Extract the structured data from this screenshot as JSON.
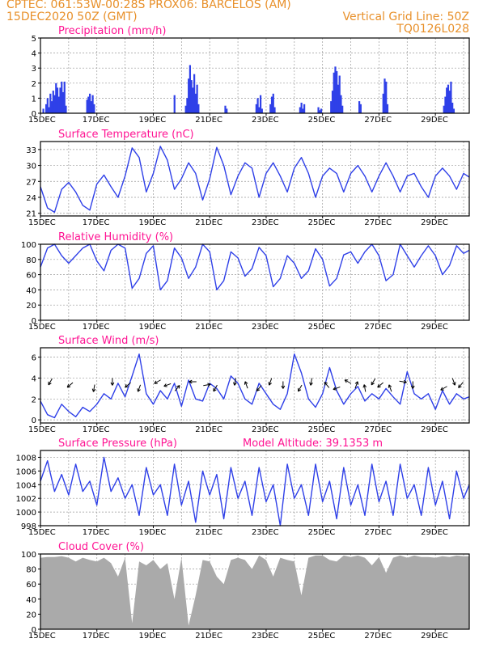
{
  "header": {
    "line1": "CPTEC:   061:53W-00:28S   PROX06: BARCELOS (AM)",
    "line2_left": "15DEC2020 50Z (GMT)",
    "line2_right": "Vertical Grid Line: 50Z",
    "line3_right": "TQ0126L028"
  },
  "colors": {
    "series": "#2f40e8",
    "bars": "#2f40e8",
    "cloud": "#aaaaaa",
    "title": "#ff1493",
    "header": "#e8902a"
  },
  "chart_data": [
    {
      "id": "precip",
      "type": "bar",
      "title": "Precipitation (mm/h)",
      "ylim": [
        0,
        5
      ],
      "yticks": [
        0,
        1,
        2,
        3,
        4,
        5
      ],
      "xticks": [
        "15DEC",
        "17DEC",
        "19DEC",
        "21DEC",
        "23DEC",
        "25DEC",
        "27DEC",
        "29DEC"
      ],
      "xlim_days": [
        0,
        15.2
      ],
      "x": [
        0.1,
        0.2,
        0.25,
        0.3,
        0.35,
        0.4,
        0.45,
        0.5,
        0.55,
        0.6,
        0.65,
        0.7,
        0.75,
        0.8,
        0.85,
        0.9,
        1.65,
        1.7,
        1.75,
        1.8,
        1.85,
        1.9,
        4.75,
        5.15,
        5.2,
        5.25,
        5.3,
        5.35,
        5.4,
        5.45,
        5.5,
        5.55,
        5.6,
        6.55,
        6.6,
        7.65,
        7.7,
        7.75,
        7.8,
        7.85,
        8.15,
        8.2,
        8.25,
        8.3,
        9.2,
        9.25,
        9.3,
        9.35,
        9.85,
        9.9,
        9.95,
        10.3,
        10.35,
        10.4,
        10.45,
        10.5,
        10.55,
        10.6,
        10.65,
        10.7,
        11.3,
        11.35,
        12.15,
        12.2,
        12.25,
        12.3,
        14.3,
        14.35,
        14.4,
        14.45,
        14.5,
        14.55,
        14.6,
        14.65
      ],
      "values": [
        0.3,
        0.6,
        1.0,
        0.4,
        1.3,
        0.8,
        1.5,
        1.2,
        2.0,
        1.7,
        1.1,
        1.7,
        2.1,
        1.4,
        2.1,
        0.5,
        0.9,
        1.1,
        1.3,
        0.8,
        1.2,
        0.6,
        1.2,
        0.5,
        1.0,
        2.3,
        3.2,
        2.2,
        1.7,
        2.6,
        1.3,
        1.9,
        0.6,
        0.5,
        0.3,
        0.6,
        1.0,
        0.4,
        1.2,
        0.3,
        0.6,
        1.1,
        1.3,
        0.4,
        0.4,
        0.7,
        0.3,
        0.6,
        0.4,
        0.2,
        0.3,
        0.8,
        1.5,
        2.7,
        3.1,
        2.8,
        1.9,
        2.5,
        1.2,
        0.5,
        0.8,
        0.6,
        1.3,
        2.3,
        2.1,
        0.6,
        0.5,
        1.1,
        1.7,
        1.9,
        1.5,
        2.1,
        0.7,
        0.3
      ]
    },
    {
      "id": "temp",
      "type": "line",
      "title": "Surface Temperature (nC)",
      "ylim": [
        20.5,
        34.5
      ],
      "yticks": [
        21,
        24,
        27,
        30,
        33
      ],
      "xticks": [
        "15DEC",
        "17DEC",
        "19DEC",
        "21DEC",
        "23DEC",
        "25DEC",
        "27DEC",
        "29DEC"
      ],
      "xlim_days": [
        0,
        15.2
      ],
      "x": [
        0.0,
        0.25,
        0.5,
        0.75,
        1.0,
        1.25,
        1.5,
        1.75,
        2.0,
        2.25,
        2.5,
        2.75,
        3.0,
        3.25,
        3.5,
        3.75,
        4.0,
        4.25,
        4.5,
        4.75,
        5.0,
        5.25,
        5.5,
        5.75,
        6.0,
        6.25,
        6.5,
        6.75,
        7.0,
        7.25,
        7.5,
        7.75,
        8.0,
        8.25,
        8.5,
        8.75,
        9.0,
        9.25,
        9.5,
        9.75,
        10.0,
        10.25,
        10.5,
        10.75,
        11.0,
        11.25,
        11.5,
        11.75,
        12.0,
        12.25,
        12.5,
        12.75,
        13.0,
        13.25,
        13.5,
        13.75,
        14.0,
        14.25,
        14.5,
        14.75,
        15.0,
        15.2
      ],
      "values": [
        26.0,
        22.0,
        21.2,
        25.5,
        26.8,
        25.0,
        22.5,
        21.6,
        26.5,
        28.2,
        26.0,
        24.0,
        28.0,
        33.3,
        31.5,
        25.0,
        28.5,
        33.6,
        31.0,
        25.5,
        27.5,
        30.5,
        28.5,
        23.5,
        27.5,
        33.4,
        30.0,
        24.5,
        28.0,
        30.5,
        29.5,
        24.0,
        28.5,
        30.5,
        28.0,
        25.0,
        29.5,
        31.5,
        28.5,
        24.0,
        28.0,
        29.5,
        28.5,
        25.0,
        28.5,
        30.0,
        28.0,
        25.0,
        28.0,
        30.5,
        28.0,
        25.0,
        28.0,
        28.5,
        26.0,
        24.0,
        28.0,
        29.5,
        28.0,
        25.5,
        28.5,
        27.8
      ]
    },
    {
      "id": "rh",
      "type": "line",
      "title": "Relative Humidity (%)",
      "ylim": [
        0,
        100
      ],
      "yticks": [
        0,
        20,
        40,
        60,
        80,
        100
      ],
      "xticks": [
        "15DEC",
        "17DEC",
        "19DEC",
        "21DEC",
        "23DEC",
        "25DEC",
        "27DEC",
        "29DEC"
      ],
      "xlim_days": [
        0,
        15.2
      ],
      "x": [
        0.0,
        0.25,
        0.5,
        0.75,
        1.0,
        1.25,
        1.5,
        1.75,
        2.0,
        2.25,
        2.5,
        2.75,
        3.0,
        3.25,
        3.5,
        3.75,
        4.0,
        4.25,
        4.5,
        4.75,
        5.0,
        5.25,
        5.5,
        5.75,
        6.0,
        6.25,
        6.5,
        6.75,
        7.0,
        7.25,
        7.5,
        7.75,
        8.0,
        8.25,
        8.5,
        8.75,
        9.0,
        9.25,
        9.5,
        9.75,
        10.0,
        10.25,
        10.5,
        10.75,
        11.0,
        11.25,
        11.5,
        11.75,
        12.0,
        12.25,
        12.5,
        12.75,
        13.0,
        13.25,
        13.5,
        13.75,
        14.0,
        14.25,
        14.5,
        14.75,
        15.0,
        15.2
      ],
      "values": [
        70,
        95,
        100,
        85,
        75,
        85,
        95,
        100,
        78,
        65,
        92,
        100,
        95,
        42,
        55,
        88,
        98,
        40,
        52,
        95,
        82,
        55,
        70,
        100,
        90,
        40,
        52,
        90,
        82,
        58,
        68,
        96,
        85,
        44,
        55,
        85,
        75,
        55,
        65,
        94,
        80,
        45,
        55,
        86,
        90,
        75,
        90,
        100,
        85,
        52,
        60,
        100,
        85,
        70,
        85,
        98,
        85,
        60,
        72,
        98,
        88,
        92
      ]
    },
    {
      "id": "wind",
      "type": "line",
      "title": "Surface Wind (m/s)",
      "ylim": [
        -0.3,
        6.9
      ],
      "yticks": [
        0,
        2,
        4,
        6
      ],
      "xticks": [
        "15DEC",
        "17DEC",
        "19DEC",
        "21DEC",
        "23DEC",
        "25DEC",
        "27DEC",
        "29DEC"
      ],
      "xlim_days": [
        0,
        15.2
      ],
      "x": [
        0.0,
        0.25,
        0.5,
        0.75,
        1.0,
        1.25,
        1.5,
        1.75,
        2.0,
        2.25,
        2.5,
        2.75,
        3.0,
        3.25,
        3.5,
        3.75,
        4.0,
        4.25,
        4.5,
        4.75,
        5.0,
        5.25,
        5.5,
        5.75,
        6.0,
        6.25,
        6.5,
        6.75,
        7.0,
        7.25,
        7.5,
        7.75,
        8.0,
        8.25,
        8.5,
        8.75,
        9.0,
        9.25,
        9.5,
        9.75,
        10.0,
        10.25,
        10.5,
        10.75,
        11.0,
        11.25,
        11.5,
        11.75,
        12.0,
        12.25,
        12.5,
        12.75,
        13.0,
        13.25,
        13.5,
        13.75,
        14.0,
        14.25,
        14.5,
        14.75,
        15.0,
        15.2
      ],
      "values": [
        1.8,
        0.5,
        0.2,
        1.5,
        0.8,
        0.3,
        1.2,
        0.8,
        1.5,
        2.5,
        2.0,
        3.5,
        2.2,
        4.2,
        6.3,
        2.5,
        1.5,
        2.8,
        2.0,
        3.5,
        1.3,
        3.8,
        2.0,
        1.8,
        3.5,
        3.0,
        2.0,
        4.2,
        3.5,
        2.0,
        1.5,
        3.5,
        2.5,
        1.5,
        1.0,
        2.5,
        6.3,
        4.5,
        2.0,
        1.2,
        2.5,
        5.0,
        2.8,
        1.5,
        2.5,
        3.2,
        1.8,
        2.5,
        2.0,
        3.0,
        2.2,
        1.5,
        4.6,
        2.5,
        2.0,
        2.5,
        1.0,
        2.8,
        1.5,
        2.5,
        2.0,
        2.2
      ],
      "arrows_x": [
        0.35,
        1.05,
        1.9,
        2.55,
        3.1,
        3.5,
        4.15,
        4.5,
        4.85,
        5.4,
        5.9,
        6.2,
        6.9,
        7.3,
        7.75,
        8.15,
        8.6,
        9.2,
        9.6,
        10.15,
        10.5,
        10.9,
        11.2,
        11.5,
        11.8,
        12.05,
        12.4,
        12.85,
        13.2,
        14.3,
        14.65,
        14.9
      ],
      "arrows_deg": [
        210,
        230,
        190,
        180,
        230,
        200,
        240,
        250,
        40,
        270,
        80,
        210,
        190,
        340,
        220,
        200,
        180,
        210,
        190,
        320,
        250,
        300,
        20,
        350,
        210,
        230,
        340,
        100,
        180,
        240,
        160,
        220
      ]
    },
    {
      "id": "press",
      "type": "line",
      "title": "Surface Pressure (hPa)",
      "subtitle": "Model Altitude: 39.1353 m",
      "ylim": [
        998,
        1009
      ],
      "yticks": [
        998,
        1000,
        1002,
        1004,
        1006,
        1008
      ],
      "xticks": [
        "15DEC",
        "17DEC",
        "19DEC",
        "21DEC",
        "23DEC",
        "25DEC",
        "27DEC",
        "29DEC"
      ],
      "xlim_days": [
        0,
        15.2
      ],
      "x": [
        0.0,
        0.25,
        0.5,
        0.75,
        1.0,
        1.25,
        1.5,
        1.75,
        2.0,
        2.25,
        2.5,
        2.75,
        3.0,
        3.25,
        3.5,
        3.75,
        4.0,
        4.25,
        4.5,
        4.75,
        5.0,
        5.25,
        5.5,
        5.75,
        6.0,
        6.25,
        6.5,
        6.75,
        7.0,
        7.25,
        7.5,
        7.75,
        8.0,
        8.25,
        8.5,
        8.75,
        9.0,
        9.25,
        9.5,
        9.75,
        10.0,
        10.25,
        10.5,
        10.75,
        11.0,
        11.25,
        11.5,
        11.75,
        12.0,
        12.25,
        12.5,
        12.75,
        13.0,
        13.25,
        13.5,
        13.75,
        14.0,
        14.25,
        14.5,
        14.75,
        15.0,
        15.2
      ],
      "values": [
        1004.5,
        1007.5,
        1003.0,
        1005.5,
        1002.5,
        1007.0,
        1003.0,
        1004.5,
        1001.0,
        1008.0,
        1003.0,
        1005.0,
        1002.0,
        1004.0,
        999.5,
        1006.5,
        1002.5,
        1004.0,
        999.5,
        1007.0,
        1001.0,
        1004.5,
        998.5,
        1006.0,
        1002.5,
        1005.5,
        999.0,
        1006.5,
        1002.0,
        1004.5,
        999.5,
        1006.5,
        1001.5,
        1004.0,
        998.0,
        1007.0,
        1002.0,
        1004.0,
        999.5,
        1007.0,
        1001.5,
        1004.5,
        999.0,
        1006.5,
        1001.0,
        1004.0,
        999.5,
        1007.0,
        1001.5,
        1004.5,
        999.5,
        1007.0,
        1002.0,
        1004.0,
        999.5,
        1006.5,
        1001.0,
        1004.5,
        999.0,
        1006.0,
        1002.0,
        1004.0
      ]
    },
    {
      "id": "cloud",
      "type": "area",
      "title": "Cloud Cover (%)",
      "ylim": [
        0,
        100
      ],
      "yticks": [
        0,
        20,
        40,
        60,
        80,
        100
      ],
      "xticks": [
        "15DEC",
        "17DEC",
        "19DEC",
        "21DEC",
        "23DEC",
        "25DEC",
        "27DEC",
        "29DEC"
      ],
      "xlim_days": [
        0,
        15.2
      ],
      "x": [
        0.0,
        0.25,
        0.5,
        0.75,
        1.0,
        1.25,
        1.5,
        1.75,
        2.0,
        2.25,
        2.5,
        2.75,
        3.0,
        3.25,
        3.5,
        3.75,
        4.0,
        4.25,
        4.5,
        4.75,
        5.0,
        5.25,
        5.5,
        5.75,
        6.0,
        6.25,
        6.5,
        6.75,
        7.0,
        7.25,
        7.5,
        7.75,
        8.0,
        8.25,
        8.5,
        8.75,
        9.0,
        9.25,
        9.5,
        9.75,
        10.0,
        10.25,
        10.5,
        10.75,
        11.0,
        11.25,
        11.5,
        11.75,
        12.0,
        12.25,
        12.5,
        12.75,
        13.0,
        13.25,
        13.5,
        13.75,
        14.0,
        14.25,
        14.5,
        14.75,
        15.0,
        15.2
      ],
      "values": [
        95,
        96,
        96,
        97,
        95,
        90,
        95,
        92,
        90,
        95,
        88,
        70,
        95,
        8,
        90,
        85,
        92,
        80,
        88,
        40,
        95,
        5,
        45,
        92,
        90,
        70,
        60,
        92,
        95,
        92,
        80,
        98,
        92,
        70,
        95,
        92,
        90,
        45,
        95,
        98,
        98,
        92,
        90,
        98,
        96,
        98,
        95,
        85,
        96,
        75,
        95,
        98,
        95,
        98,
        96,
        96,
        95,
        97,
        96,
        98,
        97,
        97
      ]
    }
  ]
}
